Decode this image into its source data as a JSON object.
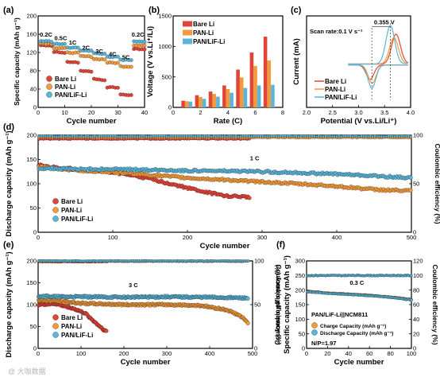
{
  "colors": {
    "bare": "#E0453A",
    "pan": "#F29A3C",
    "lif": "#5BB5D8"
  },
  "watermark": "@ 大咖数据",
  "chart_data": [
    {
      "id": "a",
      "panel_label": "(a)",
      "type": "scatter",
      "xlabel": "Cycle number",
      "ylabel": "Specific capacity (mAh g⁻¹)",
      "xlim": [
        0,
        40
      ],
      "ylim": [
        0,
        200
      ],
      "xticks": [
        0,
        10,
        20,
        30,
        40
      ],
      "yticks": [
        0,
        40,
        80,
        120,
        160,
        200
      ],
      "rate_labels": [
        {
          "text": "0.2C",
          "x": 3,
          "y": 155
        },
        {
          "text": "0.5C",
          "x": 8.5,
          "y": 147
        },
        {
          "text": "1C",
          "x": 13,
          "y": 137
        },
        {
          "text": "2C",
          "x": 18,
          "y": 126
        },
        {
          "text": "3C",
          "x": 23,
          "y": 118
        },
        {
          "text": "4C",
          "x": 28,
          "y": 112
        },
        {
          "text": "5C",
          "x": 33,
          "y": 105
        },
        {
          "text": "0.2C",
          "x": 37.5,
          "y": 155
        }
      ],
      "series": [
        {
          "name": "Bare Li",
          "color_key": "bare",
          "steps": [
            [
              1,
              5,
              136,
              135
            ],
            [
              6,
              10,
              122,
              118
            ],
            [
              11,
              15,
              100,
              98
            ],
            [
              16,
              20,
              80,
              78
            ],
            [
              21,
              25,
              62,
              60
            ],
            [
              26,
              30,
              44,
              43
            ],
            [
              31,
              35,
              28,
              26
            ],
            [
              36,
              40,
              128,
              127
            ]
          ]
        },
        {
          "name": "PAN-Li",
          "color_key": "pan",
          "steps": [
            [
              1,
              5,
              140,
              139
            ],
            [
              6,
              10,
              130,
              129
            ],
            [
              11,
              15,
              120,
              119
            ],
            [
              16,
              20,
              112,
              111
            ],
            [
              21,
              25,
              106,
              105
            ],
            [
              26,
              30,
              98,
              97
            ],
            [
              31,
              35,
              90,
              89
            ],
            [
              36,
              40,
              136,
              135
            ]
          ]
        },
        {
          "name": "PAN/LiF-Li",
          "color_key": "lif",
          "steps": [
            [
              1,
              5,
              145,
              144
            ],
            [
              6,
              10,
              139,
              138
            ],
            [
              11,
              15,
              131,
              130
            ],
            [
              16,
              20,
              125,
              124
            ],
            [
              21,
              25,
              118,
              117
            ],
            [
              26,
              30,
              111,
              110
            ],
            [
              31,
              35,
              104,
              103
            ],
            [
              36,
              40,
              144,
              143
            ]
          ]
        }
      ]
    },
    {
      "id": "b",
      "panel_label": "(b)",
      "type": "bar",
      "xlabel": "Rate (C)",
      "ylabel": "Voltage (V vs.Li⁺/Li)",
      "ylim": [
        0,
        1500
      ],
      "xticks": [
        0,
        2,
        4,
        6,
        8
      ],
      "yticks": [
        0,
        500,
        1000,
        1500
      ],
      "x": [
        1,
        2,
        3,
        4,
        5,
        6,
        7
      ],
      "series": [
        {
          "name": "Bare Li",
          "color_key": "bare",
          "values": [
            110,
            200,
            260,
            360,
            620,
            900,
            1160
          ]
        },
        {
          "name": "PAN-Li",
          "color_key": "pan",
          "values": [
            100,
            170,
            220,
            300,
            490,
            680,
            770
          ]
        },
        {
          "name": "PAN/LiF-Li",
          "color_key": "lif",
          "values": [
            95,
            140,
            175,
            240,
            320,
            360,
            370
          ]
        }
      ]
    },
    {
      "id": "c",
      "panel_label": "(c)",
      "type": "line",
      "xlabel": "Potential (V vs.Li/Li⁺)",
      "ylabel": "Current (mA)",
      "xlim": [
        2.0,
        4.0
      ],
      "xticks": [
        2.0,
        2.5,
        3.0,
        3.5,
        4.0
      ],
      "tick_labels_x": [
        "2.0",
        "2.5",
        "3.0",
        "3.5",
        "4.0"
      ],
      "annotation_scan": "Scan rate:0.1 V s⁻¹",
      "annotation_gap": "0.355 V",
      "series": [
        {
          "name": "Bare Li",
          "color_key": "bare",
          "ox_peak": [
            3.72,
            0.62
          ],
          "red_peak": [
            3.22,
            -0.3
          ]
        },
        {
          "name": "PAN-Li",
          "color_key": "pan",
          "ox_peak": [
            3.68,
            0.55
          ],
          "red_peak": [
            3.26,
            -0.38
          ]
        },
        {
          "name": "PAN/LiF-Li",
          "color_key": "lif",
          "ox_peak": [
            3.61,
            0.8
          ],
          "red_peak": [
            3.255,
            -0.48
          ]
        }
      ]
    },
    {
      "id": "d",
      "panel_label": "(d)",
      "type": "scatter",
      "xlabel": "Cycle number",
      "ylabel": "Discharge capacity (mAh g⁻¹)",
      "y2label": "Coulombic efficiency (%)",
      "xlim": [
        0,
        500
      ],
      "ylim": [
        0,
        200
      ],
      "y2lim": [
        0,
        100
      ],
      "xticks": [
        0,
        100,
        200,
        300,
        400,
        500
      ],
      "yticks": [
        0,
        50,
        100,
        150,
        200
      ],
      "y2ticks": [
        0,
        50,
        100
      ],
      "rate_label": "1 C",
      "series": [
        {
          "name": "Bare Li",
          "color_key": "bare",
          "capacity": [
            [
              1,
              140
            ],
            [
              10,
              135
            ],
            [
              50,
              130
            ],
            [
              100,
              124
            ],
            [
              150,
              110
            ],
            [
              190,
              95
            ],
            [
              220,
              84
            ],
            [
              250,
              75
            ],
            [
              284,
              72
            ]
          ],
          "ce_range": [
            1,
            284,
            96
          ]
        },
        {
          "name": "PAN-Li",
          "color_key": "pan",
          "capacity": [
            [
              1,
              135
            ],
            [
              50,
              128
            ],
            [
              100,
              124
            ],
            [
              200,
              112
            ],
            [
              300,
              104
            ],
            [
              400,
              95
            ],
            [
              450,
              88
            ],
            [
              500,
              85
            ]
          ],
          "ce_range": [
            1,
            500,
            97.5
          ]
        },
        {
          "name": "PAN/LiF-Li",
          "color_key": "lif",
          "capacity": [
            [
              1,
              132
            ],
            [
              50,
              130
            ],
            [
              100,
              130
            ],
            [
              200,
              127
            ],
            [
              300,
              125
            ],
            [
              400,
              120
            ],
            [
              450,
              116
            ],
            [
              500,
              112
            ]
          ],
          "ce_range": [
            1,
            500,
            99
          ]
        }
      ]
    },
    {
      "id": "e",
      "panel_label": "(e)",
      "type": "scatter",
      "xlabel": "Cycle number",
      "ylabel": "Discharge capacity (mAh g⁻¹)",
      "y2label": "Coulombic efficiency (%)",
      "xlim": [
        0,
        500
      ],
      "ylim": [
        0,
        200
      ],
      "y2lim": [
        0,
        100
      ],
      "xticks": [
        0,
        100,
        200,
        300,
        400,
        500
      ],
      "yticks": [
        0,
        50,
        100,
        150,
        200
      ],
      "y2ticks": [
        0,
        50,
        100
      ],
      "rate_label": "3 C",
      "series": [
        {
          "name": "Bare Li",
          "color_key": "bare",
          "capacity": [
            [
              1,
              100
            ],
            [
              40,
              102
            ],
            [
              80,
              92
            ],
            [
              110,
              80
            ],
            [
              130,
              62
            ],
            [
              150,
              45
            ],
            [
              160,
              38
            ]
          ],
          "ce_range": [
            1,
            160,
            99
          ]
        },
        {
          "name": "PAN-Li",
          "color_key": "pan",
          "capacity": [
            [
              1,
              110
            ],
            [
              50,
              108
            ],
            [
              100,
              103
            ],
            [
              200,
              100
            ],
            [
              300,
              100
            ],
            [
              380,
              98
            ],
            [
              440,
              88
            ],
            [
              470,
              75
            ],
            [
              490,
              58
            ]
          ],
          "ce_range": [
            1,
            490,
            99.5
          ]
        },
        {
          "name": "PAN/LiF-Li",
          "color_key": "lif",
          "capacity": [
            [
              1,
              120
            ],
            [
              50,
              118
            ],
            [
              100,
              118
            ],
            [
              200,
              117
            ],
            [
              300,
              118
            ],
            [
              400,
              117
            ],
            [
              490,
              115
            ]
          ],
          "ce_range": [
            1,
            490,
            100
          ]
        }
      ]
    },
    {
      "id": "f",
      "panel_label": "(f)",
      "type": "scatter",
      "xlabel": "Cycle number",
      "ylabel": "Specific capacity (mAh g⁻¹)",
      "y2label": "Coulombic efficiency (%)",
      "xlim": [
        0,
        100
      ],
      "ylim": [
        0,
        300
      ],
      "y2lim": [
        0,
        120
      ],
      "xticks": [
        0,
        20,
        40,
        60,
        80,
        100
      ],
      "yticks": [
        0,
        50,
        100,
        150,
        200,
        250,
        300
      ],
      "y2ticks": [
        0,
        20,
        40,
        60,
        80,
        100,
        120
      ],
      "rate_label": "0.3 C",
      "cell_label": "PAN/LiF-Li||NCM811",
      "np_label": "N/P=1.97",
      "series": [
        {
          "name": "Charge Capacity (mAh g⁻¹)",
          "color_key": "pan",
          "capacity": [
            [
              1,
              196
            ],
            [
              20,
              190
            ],
            [
              40,
              186
            ],
            [
              60,
              182
            ],
            [
              80,
              176
            ],
            [
              100,
              168
            ]
          ]
        },
        {
          "name": "Discharge Capacity (mAh g⁻¹)",
          "color_key": "lif",
          "capacity": [
            [
              1,
              194
            ],
            [
              20,
              189
            ],
            [
              40,
              185
            ],
            [
              60,
              181
            ],
            [
              80,
              175
            ],
            [
              100,
              166
            ]
          ]
        }
      ],
      "ce": {
        "y": 100
      }
    }
  ]
}
